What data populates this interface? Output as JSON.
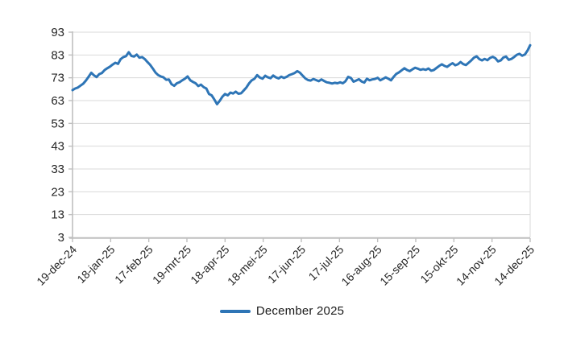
{
  "legend": {
    "label": "December 2025"
  },
  "colors": {
    "line": "#2E75B6",
    "axis": "#BFBFBF",
    "grid": "#D9D9D9",
    "tick_label": "#262626",
    "legend_text": "#1A1A1A",
    "background": "#FFFFFF"
  },
  "chart_data": {
    "type": "line",
    "title": "",
    "xlabel": "",
    "ylabel": "",
    "grid": "horizontal",
    "legend_position": "bottom-center",
    "ylim": [
      3,
      93
    ],
    "y_ticks": [
      3,
      13,
      23,
      33,
      43,
      53,
      63,
      73,
      83,
      93
    ],
    "x_tick_labels": [
      "19-dec-24",
      "18-jan-25",
      "17-feb-25",
      "19-mrt-25",
      "18-apr-25",
      "18-mei-25",
      "17-jun-25",
      "17-jul-25",
      "16-aug-25",
      "15-sep-25",
      "15-okt-25",
      "14-nov-25",
      "14-dec-25"
    ],
    "series": [
      {
        "name": "December 2025",
        "color": "#2E75B6",
        "values": [
          67.6,
          68.3,
          68.7,
          69.6,
          70.4,
          71.8,
          73.4,
          75.2,
          74.1,
          73.3,
          74.6,
          75.1,
          76.4,
          77.2,
          77.9,
          78.8,
          79.6,
          79.1,
          81.2,
          82.1,
          82.5,
          84.2,
          82.6,
          82.3,
          83.2,
          81.8,
          82.1,
          81.2,
          79.9,
          78.7,
          77.1,
          75.3,
          74.2,
          73.6,
          73.2,
          72.1,
          72.3,
          70.2,
          69.5,
          70.6,
          71.1,
          71.9,
          72.6,
          73.6,
          71.9,
          71.2,
          70.6,
          69.4,
          70.0,
          68.9,
          68.3,
          65.9,
          65.3,
          63.5,
          61.4,
          62.9,
          64.7,
          65.9,
          65.3,
          66.5,
          66.1,
          66.9,
          66.0,
          66.2,
          67.5,
          68.8,
          70.6,
          71.9,
          72.6,
          74.2,
          73.1,
          72.6,
          73.9,
          73.2,
          72.8,
          74.0,
          73.2,
          72.7,
          73.5,
          72.9,
          73.4,
          74.2,
          74.6,
          75.1,
          75.9,
          75.2,
          73.9,
          72.7,
          72.0,
          71.8,
          72.5,
          72.0,
          71.5,
          72.3,
          71.6,
          71.0,
          70.8,
          70.5,
          70.8,
          70.6,
          71.0,
          70.6,
          71.5,
          73.4,
          72.9,
          71.3,
          71.8,
          72.4,
          71.4,
          70.9,
          72.6,
          71.9,
          72.3,
          72.5,
          73.0,
          71.9,
          72.5,
          73.2,
          72.6,
          71.9,
          73.4,
          74.7,
          75.4,
          76.3,
          77.2,
          76.4,
          75.9,
          76.7,
          77.4,
          77.0,
          76.5,
          76.8,
          76.5,
          77.1,
          76.1,
          76.4,
          77.3,
          78.2,
          78.9,
          78.2,
          77.8,
          78.7,
          79.4,
          78.5,
          78.9,
          79.9,
          79.0,
          78.6,
          79.6,
          80.6,
          81.8,
          82.4,
          81.2,
          80.6,
          81.3,
          80.7,
          81.7,
          82.2,
          81.6,
          80.2,
          80.6,
          81.9,
          82.3,
          80.9,
          81.3,
          82.1,
          83.1,
          83.5,
          82.7,
          83.2,
          84.9,
          87.3
        ]
      }
    ]
  }
}
